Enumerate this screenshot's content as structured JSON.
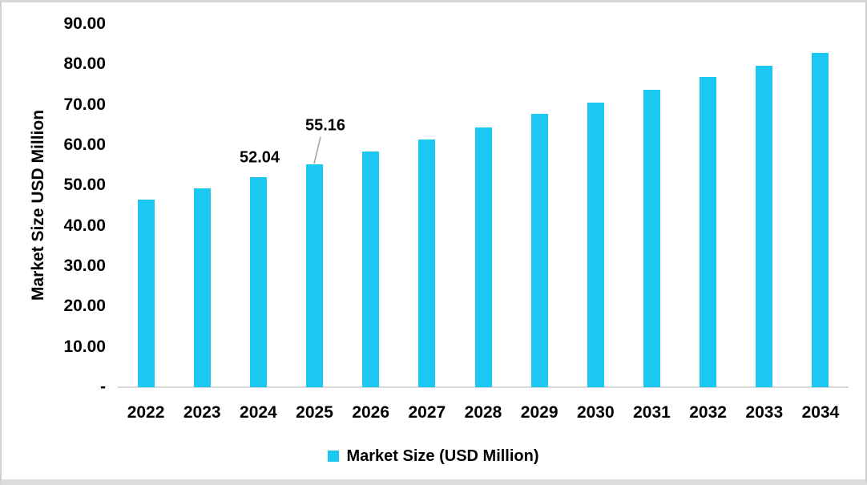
{
  "chart_data": {
    "type": "bar",
    "title": "",
    "categories": [
      "2022",
      "2023",
      "2024",
      "2025",
      "2026",
      "2027",
      "2028",
      "2029",
      "2030",
      "2031",
      "2032",
      "2033",
      "2034"
    ],
    "series": [
      {
        "name": "Market Size (USD Million)",
        "values": [
          46.4,
          49.2,
          52.04,
          55.16,
          58.4,
          61.3,
          64.4,
          67.7,
          70.5,
          73.7,
          76.8,
          79.6,
          82.9
        ]
      }
    ],
    "xlabel": "",
    "ylabel": "Market Size USD Million",
    "ylim": [
      0,
      90
    ],
    "ytick_step": 10,
    "ytick_labels": [
      "90.00",
      "80.00",
      "70.00",
      "60.00",
      "50.00",
      "40.00",
      "30.00",
      "20.00",
      "10.00",
      "-"
    ],
    "grid": false,
    "legend": {
      "position": "bottom",
      "label": "Market Size (USD Million)"
    },
    "data_labels": [
      {
        "category": "2024",
        "text": "52.04",
        "leader_line": false
      },
      {
        "category": "2025",
        "text": "55.16",
        "leader_line": true
      }
    ]
  },
  "colors": {
    "bar": "#1cc7f2",
    "axis_line": "#d9d9d9",
    "leader_line": "#a6a6a6",
    "text": "#000000"
  }
}
